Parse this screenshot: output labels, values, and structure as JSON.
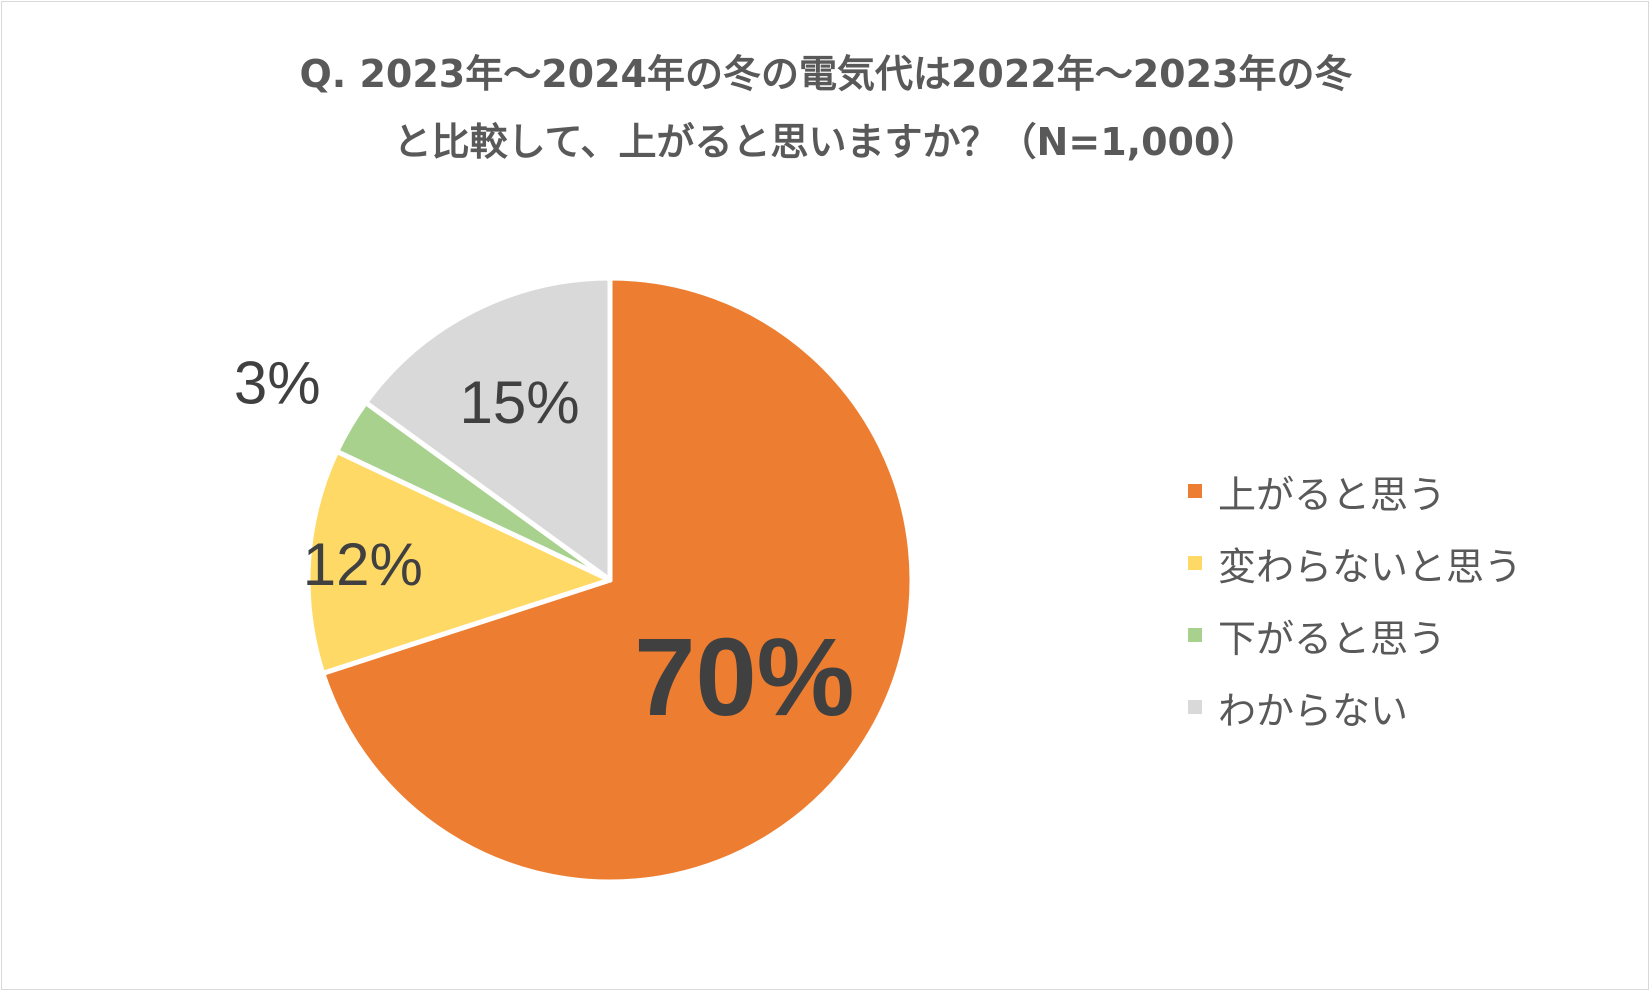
{
  "chart_data": {
    "type": "pie",
    "title": "Q. 2023年～2024年の冬の電気代は2022年～2023年の冬",
    "subtitle": "と比較して、上がると思いますか？（N=1,000）",
    "categories": [
      "上がると思う",
      "変わらないと思う",
      "下がると思う",
      "わからない"
    ],
    "values": [
      70,
      12,
      3,
      15
    ],
    "data_labels": [
      "70%",
      "12%",
      "3%",
      "15%"
    ],
    "colors": [
      "#ED7D31",
      "#FFD966",
      "#A9D18E",
      "#D9D9D9"
    ],
    "start_angle_deg": 0,
    "direction": "clockwise",
    "legend_position": "right"
  }
}
